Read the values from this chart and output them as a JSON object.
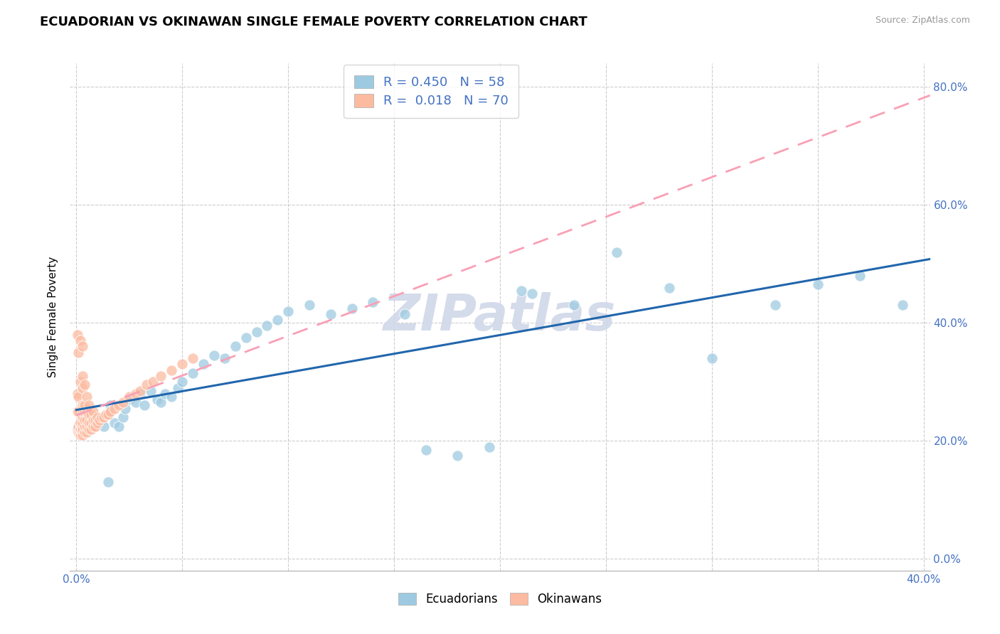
{
  "title": "ECUADORIAN VS OKINAWAN SINGLE FEMALE POVERTY CORRELATION CHART",
  "source": "Source: ZipAtlas.com",
  "ylabel_label": "Single Female Poverty",
  "legend1_label": "R = 0.450   N = 58",
  "legend2_label": "R =  0.018   N = 70",
  "legend_bottom_label1": "Ecuadorians",
  "legend_bottom_label2": "Okinawans",
  "blue_color": "#9ecae1",
  "pink_color": "#fcbba1",
  "trend_blue": "#2166ac",
  "trend_pink": "#fa9fb5",
  "background_color": "#ffffff",
  "grid_color": "#cccccc",
  "tick_color": "#4472c4",
  "ecuadorians_x": [
    0.001,
    0.002,
    0.003,
    0.004,
    0.005,
    0.006,
    0.007,
    0.008,
    0.009,
    0.01,
    0.012,
    0.013,
    0.015,
    0.016,
    0.018,
    0.02,
    0.022,
    0.023,
    0.025,
    0.028,
    0.03,
    0.032,
    0.035,
    0.038,
    0.04,
    0.042,
    0.045,
    0.048,
    0.05,
    0.055,
    0.06,
    0.065,
    0.07,
    0.075,
    0.08,
    0.085,
    0.09,
    0.095,
    0.1,
    0.11,
    0.12,
    0.13,
    0.14,
    0.155,
    0.165,
    0.18,
    0.195,
    0.215,
    0.235,
    0.255,
    0.28,
    0.3,
    0.33,
    0.35,
    0.37,
    0.39,
    0.015,
    0.21
  ],
  "ecuadorians_y": [
    0.225,
    0.22,
    0.235,
    0.225,
    0.215,
    0.23,
    0.22,
    0.225,
    0.23,
    0.24,
    0.235,
    0.225,
    0.245,
    0.26,
    0.23,
    0.225,
    0.24,
    0.255,
    0.27,
    0.265,
    0.28,
    0.26,
    0.285,
    0.27,
    0.265,
    0.28,
    0.275,
    0.29,
    0.3,
    0.315,
    0.33,
    0.345,
    0.34,
    0.36,
    0.375,
    0.385,
    0.395,
    0.405,
    0.42,
    0.43,
    0.415,
    0.425,
    0.435,
    0.415,
    0.185,
    0.175,
    0.19,
    0.45,
    0.43,
    0.52,
    0.46,
    0.34,
    0.43,
    0.465,
    0.48,
    0.43,
    0.13,
    0.455
  ],
  "okinawans_x": [
    0.0005,
    0.0005,
    0.0005,
    0.0005,
    0.001,
    0.001,
    0.001,
    0.001,
    0.001,
    0.0015,
    0.0015,
    0.002,
    0.002,
    0.002,
    0.002,
    0.002,
    0.0025,
    0.0025,
    0.003,
    0.003,
    0.003,
    0.003,
    0.003,
    0.003,
    0.003,
    0.003,
    0.003,
    0.004,
    0.004,
    0.004,
    0.004,
    0.004,
    0.004,
    0.005,
    0.005,
    0.005,
    0.005,
    0.005,
    0.006,
    0.006,
    0.006,
    0.006,
    0.007,
    0.007,
    0.007,
    0.008,
    0.008,
    0.008,
    0.009,
    0.009,
    0.01,
    0.01,
    0.011,
    0.012,
    0.013,
    0.014,
    0.015,
    0.016,
    0.018,
    0.02,
    0.022,
    0.025,
    0.028,
    0.03,
    0.033,
    0.036,
    0.04,
    0.045,
    0.05,
    0.055
  ],
  "okinawans_y": [
    0.22,
    0.25,
    0.28,
    0.38,
    0.215,
    0.225,
    0.25,
    0.275,
    0.35,
    0.215,
    0.23,
    0.21,
    0.22,
    0.23,
    0.3,
    0.37,
    0.215,
    0.225,
    0.21,
    0.22,
    0.23,
    0.24,
    0.25,
    0.26,
    0.29,
    0.31,
    0.36,
    0.215,
    0.225,
    0.235,
    0.25,
    0.26,
    0.295,
    0.215,
    0.225,
    0.235,
    0.25,
    0.275,
    0.22,
    0.23,
    0.245,
    0.26,
    0.22,
    0.23,
    0.245,
    0.225,
    0.235,
    0.25,
    0.225,
    0.235,
    0.23,
    0.24,
    0.235,
    0.24,
    0.24,
    0.245,
    0.245,
    0.25,
    0.255,
    0.26,
    0.265,
    0.275,
    0.28,
    0.285,
    0.295,
    0.3,
    0.31,
    0.32,
    0.33,
    0.34
  ],
  "xlim": [
    -0.003,
    0.403
  ],
  "ylim": [
    -0.02,
    0.84
  ],
  "xticks": [
    0.0,
    0.4
  ],
  "yticks": [
    0.0,
    0.2,
    0.4,
    0.6,
    0.8
  ],
  "x_grid_lines": [
    0.0,
    0.05,
    0.1,
    0.15,
    0.2,
    0.25,
    0.3,
    0.35,
    0.4
  ]
}
